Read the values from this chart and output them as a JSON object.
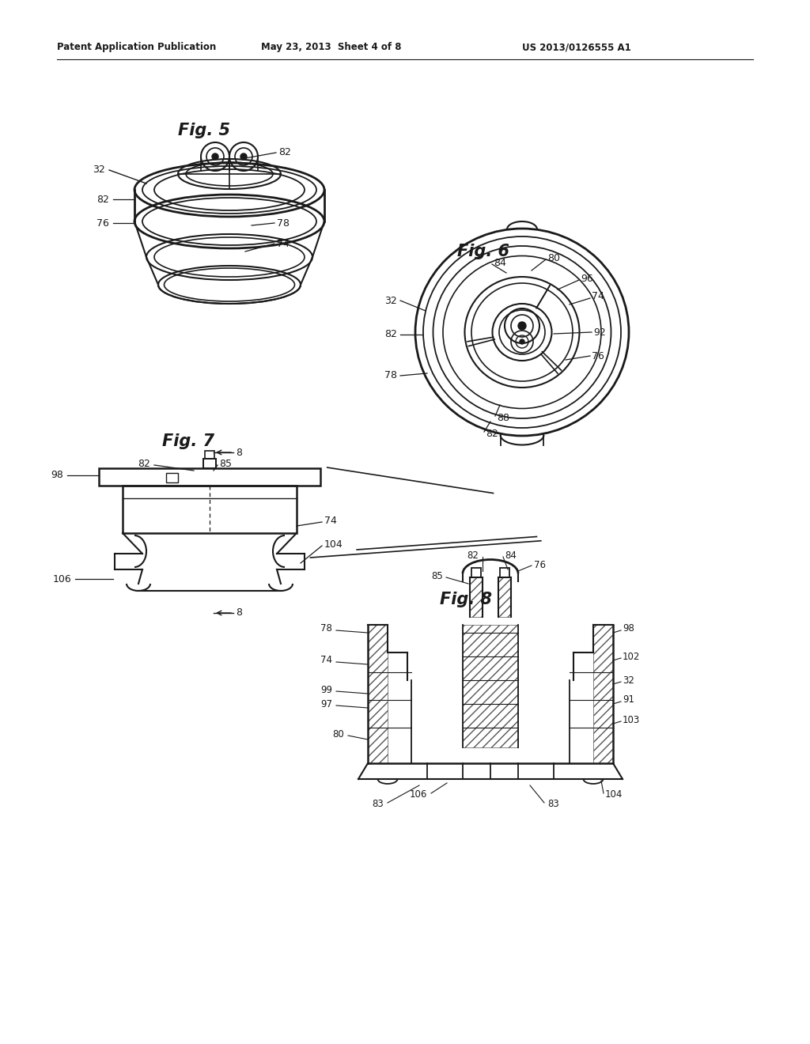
{
  "background_color": "#ffffff",
  "page_background": "#ffffff",
  "header_text1": "Patent Application Publication",
  "header_text2": "May 23, 2013  Sheet 4 of 8",
  "header_text3": "US 2013/0126555 A1",
  "fig5_title": "Fig. 5",
  "fig6_title": "Fig. 6",
  "fig7_title": "Fig. 7",
  "fig8_title": "Fig. 8",
  "line_color": "#1a1a1a",
  "text_color": "#1a1a1a"
}
